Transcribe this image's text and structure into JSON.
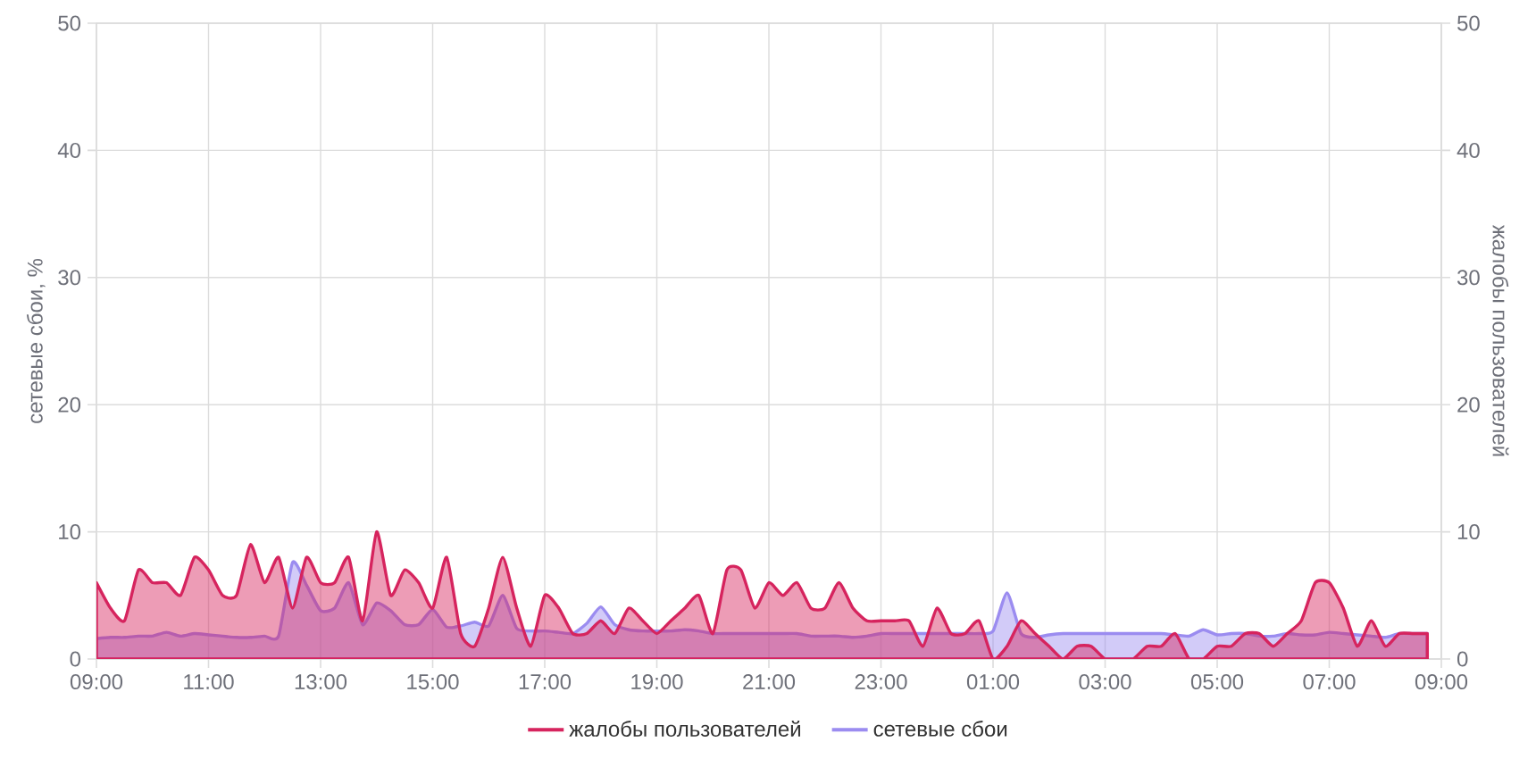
{
  "chart_data": {
    "type": "area",
    "ylabel": "сетевые сбои, %",
    "y2label": "жалобы пользователей",
    "categories": [
      "09:00",
      null,
      null,
      null,
      null,
      null,
      null,
      null,
      "11:00",
      null,
      null,
      null,
      null,
      null,
      null,
      null,
      "13:00",
      null,
      null,
      null,
      null,
      null,
      null,
      null,
      "15:00",
      null,
      null,
      null,
      null,
      null,
      null,
      null,
      "17:00",
      null,
      null,
      null,
      null,
      null,
      null,
      null,
      "19:00",
      null,
      null,
      null,
      null,
      null,
      null,
      null,
      "21:00",
      null,
      null,
      null,
      null,
      null,
      null,
      null,
      "23:00",
      null,
      null,
      null,
      null,
      null,
      null,
      null,
      "01:00",
      null,
      null,
      null,
      null,
      null,
      null,
      null,
      "03:00",
      null,
      null,
      null,
      null,
      null,
      null,
      null,
      "05:00",
      null,
      null,
      null,
      null,
      null,
      null,
      null,
      "07:00",
      null,
      null,
      null,
      null,
      null,
      null,
      null,
      "09:00"
    ],
    "series": [
      {
        "name": "жалобы пользователей",
        "color": "#d6245e",
        "axis": "y2",
        "values": [
          6,
          4,
          3,
          7,
          6,
          6,
          5,
          8,
          7,
          5,
          5,
          9,
          6,
          8,
          4,
          8,
          6,
          6,
          8,
          3,
          10,
          5,
          7,
          6,
          4,
          8,
          2,
          1,
          4,
          8,
          4,
          1,
          5,
          4,
          2,
          2,
          3,
          2,
          4,
          3,
          2,
          3,
          4,
          5,
          2,
          7,
          7,
          4,
          6,
          5,
          6,
          4,
          4,
          6,
          4,
          3,
          3,
          3,
          3,
          1,
          4,
          2,
          2,
          3,
          0,
          1,
          3,
          2,
          1,
          0,
          1,
          1,
          0,
          0,
          0,
          1,
          1,
          2,
          0,
          0,
          1,
          1,
          2,
          2,
          1,
          2,
          3,
          6,
          6,
          4,
          1,
          3,
          1,
          2,
          2,
          2,
          null
        ]
      },
      {
        "name": "сетевые сбои",
        "color": "#9b8cf0",
        "values": [
          1.6,
          1.7,
          1.7,
          1.8,
          1.8,
          2.1,
          1.8,
          2.0,
          1.9,
          1.8,
          1.7,
          1.7,
          1.8,
          1.8,
          7.6,
          5.8,
          3.8,
          4.0,
          6.0,
          2.7,
          4.4,
          3.8,
          2.7,
          2.7,
          3.9,
          2.5,
          2.6,
          2.9,
          2.6,
          5.0,
          2.4,
          2.2,
          2.2,
          2.1,
          2.0,
          2.8,
          4.1,
          2.7,
          2.3,
          2.2,
          2.2,
          2.2,
          2.3,
          2.2,
          2.0,
          2.0,
          2.0,
          2.0,
          2.0,
          2.0,
          2.0,
          1.8,
          1.8,
          1.8,
          1.7,
          1.8,
          2.0,
          2.0,
          2.0,
          2.0,
          2.0,
          2.0,
          2.0,
          2.0,
          2.2,
          5.2,
          2.0,
          1.7,
          1.9,
          2.0,
          2.0,
          2.0,
          2.0,
          2.0,
          2.0,
          2.0,
          2.0,
          1.9,
          1.8,
          2.3,
          1.9,
          2.0,
          2.0,
          1.8,
          1.8,
          2.0,
          1.9,
          1.9,
          2.1,
          2.0,
          1.9,
          1.8,
          1.7,
          2.0,
          2.0,
          2.0,
          null
        ]
      }
    ],
    "ylim": [
      0,
      50
    ],
    "yticks": [
      0,
      10,
      20,
      30,
      40,
      50
    ],
    "y2lim": [
      0,
      50
    ],
    "y2ticks": [
      0,
      10,
      20,
      30,
      40,
      50
    ],
    "grid": true,
    "legend": "bottom"
  }
}
